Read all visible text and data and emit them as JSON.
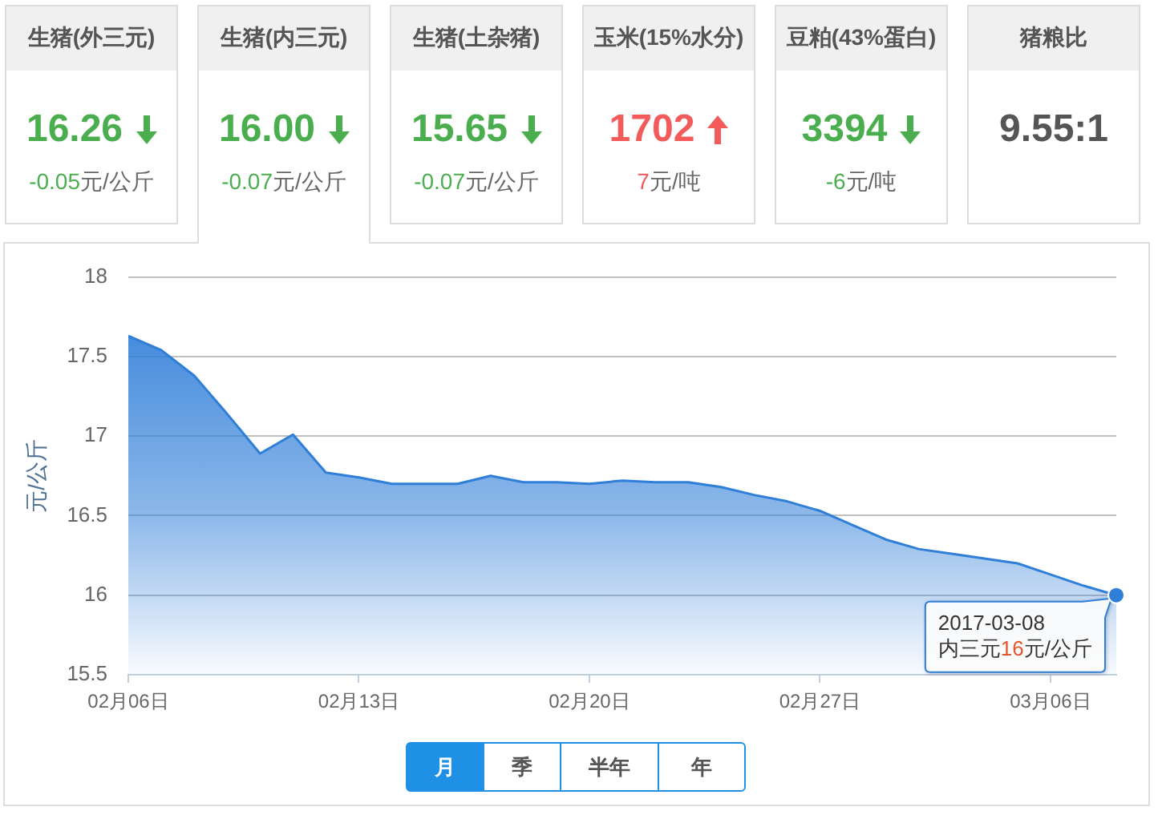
{
  "chart_data": [
    {
      "type": "other",
      "categories": [
        "生猪(外三元)",
        "生猪(内三元)",
        "生猪(土杂猪)",
        "玉米(15%水分)",
        "豆粕(43%蛋白)",
        "猪粮比"
      ],
      "values": [
        -0.05,
        -0.07,
        -0.07,
        7,
        -6,
        null
      ],
      "value_labels": [
        "-0.05元/公斤",
        "-0.07元/公斤",
        "-0.07元/公斤",
        "7元/吨",
        "-6元/吨",
        null
      ],
      "annotations": [
        "16.26",
        "16.00",
        "15.65",
        "1702",
        "3394",
        "9.55:1"
      ]
    },
    {
      "type": "area",
      "ylabel": "元/公斤",
      "color": "#2f7ed8",
      "x": [
        "2017-02-06",
        "2017-02-07",
        "2017-02-08",
        "2017-02-09",
        "2017-02-10",
        "2017-02-11",
        "2017-02-12",
        "2017-02-13",
        "2017-02-14",
        "2017-02-15",
        "2017-02-16",
        "2017-02-17",
        "2017-02-18",
        "2017-02-19",
        "2017-02-20",
        "2017-02-21",
        "2017-02-22",
        "2017-02-23",
        "2017-02-24",
        "2017-02-25",
        "2017-02-26",
        "2017-02-27",
        "2017-02-28",
        "2017-03-01",
        "2017-03-02",
        "2017-03-03",
        "2017-03-04",
        "2017-03-05",
        "2017-03-06",
        "2017-03-07",
        "2017-03-08"
      ],
      "values": [
        17.63,
        17.54,
        17.38,
        17.14,
        16.89,
        17.01,
        16.77,
        16.74,
        16.7,
        16.7,
        16.7,
        16.75,
        16.71,
        16.71,
        16.7,
        16.72,
        16.71,
        16.71,
        16.68,
        16.63,
        16.59,
        16.53,
        16.44,
        16.35,
        16.29,
        16.26,
        16.23,
        16.2,
        16.13,
        16.06,
        16.0
      ],
      "xlim": [
        "2017-02-06",
        "2017-03-08"
      ],
      "xticks": [
        {
          "value": "2017-02-06",
          "label": "02月06日"
        },
        {
          "value": "2017-02-13",
          "label": "02月13日"
        },
        {
          "value": "2017-02-20",
          "label": "02月20日"
        },
        {
          "value": "2017-02-27",
          "label": "02月27日"
        },
        {
          "value": "2017-03-06",
          "label": "03月06日"
        }
      ],
      "ylim": [
        15.5,
        18
      ],
      "yticks": [
        15.5,
        16,
        16.5,
        17,
        17.5,
        18
      ],
      "grid": "y",
      "annotations": [
        {
          "text": "2017-03-08\n内三元16元/公斤",
          "x": "2017-03-08",
          "y": 16
        },
        "月",
        "季",
        "半年",
        "年"
      ]
    }
  ]
}
